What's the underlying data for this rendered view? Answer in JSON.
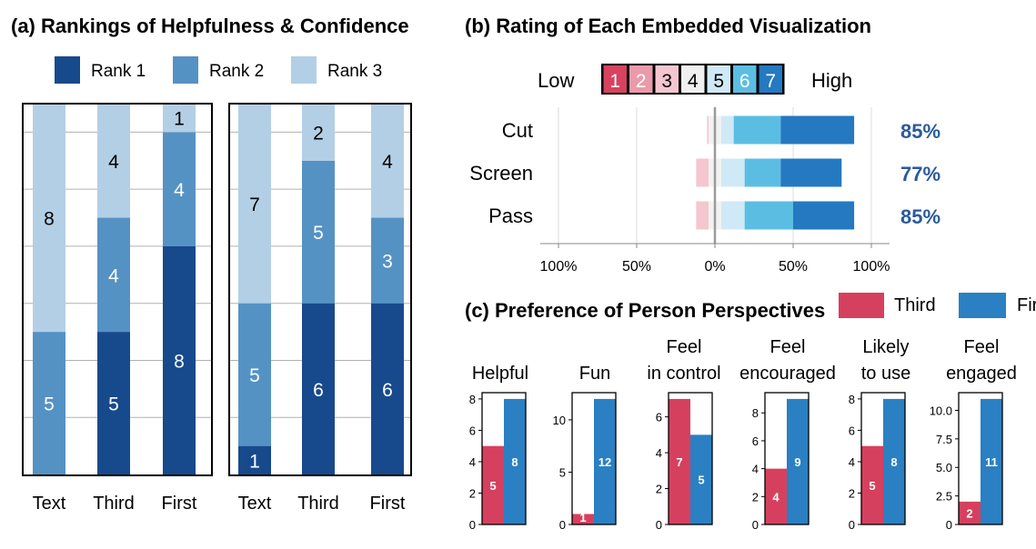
{
  "panel_a": {
    "title": "(a) Rankings of Helpfulness & Confidence",
    "legend": [
      {
        "label": "Rank 1",
        "color": "#174a8c"
      },
      {
        "label": "Rank 2",
        "color": "#5592c4"
      },
      {
        "label": "Rank 3",
        "color": "#b3cfe6"
      }
    ]
  },
  "panel_b": {
    "title": "(b) Rating of Each Embedded Visualization",
    "scale_low": "Low",
    "scale_high": "High",
    "scale_steps": [
      {
        "label": "1",
        "color": "#d6425f",
        "text": "#ffffff"
      },
      {
        "label": "2",
        "color": "#e99aab",
        "text": "#ffffff"
      },
      {
        "label": "3",
        "color": "#f5c6d0",
        "text": "#000000"
      },
      {
        "label": "4",
        "color": "#f0f0f0",
        "text": "#000000"
      },
      {
        "label": "5",
        "color": "#d0e9f6",
        "text": "#000000"
      },
      {
        "label": "6",
        "color": "#5cbde3",
        "text": "#ffffff"
      },
      {
        "label": "7",
        "color": "#2479c1",
        "text": "#ffffff"
      }
    ]
  },
  "panel_c": {
    "title": "(c) Preference of Person Perspectives",
    "legend": [
      {
        "label": "Third",
        "color": "#d6405f"
      },
      {
        "label": "First",
        "color": "#2a80c2"
      }
    ]
  },
  "chart_data": [
    {
      "type": "bar",
      "stacked": true,
      "title": "Helpfulness",
      "categories": [
        "Text",
        "Third",
        "First"
      ],
      "series": [
        {
          "name": "Rank 1",
          "values": [
            0,
            5,
            8
          ]
        },
        {
          "name": "Rank 2",
          "values": [
            5,
            4,
            4
          ]
        },
        {
          "name": "Rank 3",
          "values": [
            8,
            4,
            1
          ]
        }
      ],
      "ylim": [
        0,
        13
      ]
    },
    {
      "type": "bar",
      "stacked": true,
      "title": "Confidence",
      "categories": [
        "Text",
        "Third",
        "First"
      ],
      "series": [
        {
          "name": "Rank 1",
          "values": [
            1,
            6,
            6
          ]
        },
        {
          "name": "Rank 2",
          "values": [
            5,
            5,
            3
          ]
        },
        {
          "name": "Rank 3",
          "values": [
            7,
            2,
            4
          ]
        }
      ],
      "ylim": [
        0,
        13
      ]
    },
    {
      "type": "bar",
      "stacked": true,
      "orientation": "horizontal-diverging",
      "title": "(b) Rating of Each Embedded Visualization",
      "categories": [
        "Cut",
        "Screen",
        "Pass"
      ],
      "rating_levels": [
        "1",
        "2",
        "3",
        "4",
        "5",
        "6",
        "7"
      ],
      "segments_percent": [
        [
          0,
          0,
          1,
          8,
          8,
          30,
          47
        ],
        [
          0,
          0,
          8,
          8,
          15,
          23,
          39
        ],
        [
          0,
          0,
          8,
          8,
          15,
          31,
          39
        ]
      ],
      "positive_labels": [
        "85%",
        "77%",
        "85%"
      ],
      "xticks": [
        "100%",
        "50%",
        "0%",
        "50%",
        "100%"
      ],
      "xlim": [
        -100,
        100
      ]
    },
    {
      "type": "bar",
      "title": "(c) Preference of Person Perspectives",
      "groups": [
        {
          "title": "Helpful",
          "third": 5,
          "first": 8,
          "ymax": 8.4,
          "yticks": [
            "0",
            "2",
            "4",
            "6",
            "8"
          ],
          "yvals": [
            0,
            2,
            4,
            6,
            8
          ]
        },
        {
          "title": "Fun",
          "third": 1,
          "first": 12,
          "ymax": 12.6,
          "yticks": [
            "0",
            "5",
            "10"
          ],
          "yvals": [
            0,
            5,
            10
          ]
        },
        {
          "title": "Feel\nin control",
          "third": 7,
          "first": 5,
          "ymax": 7.35,
          "yticks": [
            "0",
            "2",
            "4",
            "6"
          ],
          "yvals": [
            0,
            2,
            4,
            6
          ]
        },
        {
          "title": "Feel\nencouraged",
          "third": 4,
          "first": 9,
          "ymax": 9.45,
          "yticks": [
            "0",
            "2",
            "4",
            "6",
            "8"
          ],
          "yvals": [
            0,
            2,
            4,
            6,
            8
          ]
        },
        {
          "title": "Likely\nto use",
          "third": 5,
          "first": 8,
          "ymax": 8.4,
          "yticks": [
            "0",
            "2",
            "4",
            "6",
            "8"
          ],
          "yvals": [
            0,
            2,
            4,
            6,
            8
          ]
        },
        {
          "title": "Feel\nengaged",
          "third": 2,
          "first": 11,
          "ymax": 11.55,
          "yticks": [
            "0",
            "2.5",
            "5.0",
            "7.5",
            "10.0"
          ],
          "yvals": [
            0,
            2.5,
            5,
            7.5,
            10
          ]
        }
      ]
    }
  ]
}
